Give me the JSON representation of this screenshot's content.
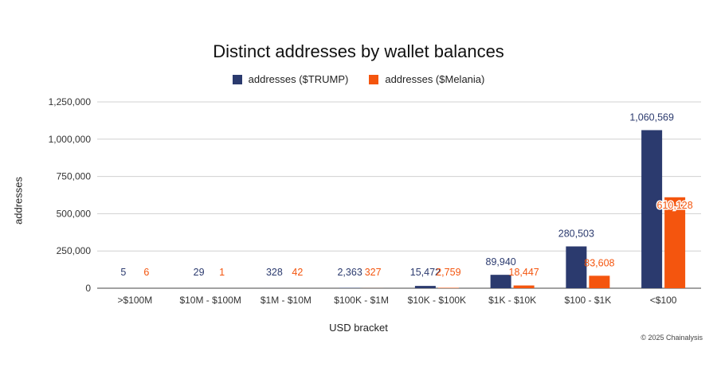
{
  "chart_data": {
    "type": "bar",
    "title": "Distinct addresses by wallet balances",
    "xlabel": "USD bracket",
    "ylabel": "addresses",
    "ylim": [
      0,
      1250000
    ],
    "yticks": [
      0,
      250000,
      500000,
      750000,
      1000000,
      1250000
    ],
    "ytick_labels": [
      "0",
      "250,000",
      "500,000",
      "750,000",
      "1,000,000",
      "1,250,000"
    ],
    "grid": true,
    "legend_position": "top-center",
    "categories": [
      ">$100M",
      "$10M - $100M",
      "$1M - $10M",
      "$100K - $1M",
      "$10K - $100K",
      "$1K - $10K",
      "$100 - $1K",
      "<$100"
    ],
    "series": [
      {
        "name": "addresses ($TRUMP)",
        "color": "#2b3a6e",
        "values": [
          5,
          29,
          328,
          2363,
          15472,
          89940,
          280503,
          1060569
        ],
        "labels": [
          "5",
          "29",
          "328",
          "2,363",
          "15,472",
          "89,940",
          "280,503",
          "1,060,569"
        ]
      },
      {
        "name": "addresses ($Melania)",
        "color": "#f4550e",
        "values": [
          6,
          1,
          42,
          327,
          2759,
          18447,
          83608,
          610128
        ],
        "labels": [
          "6",
          "1",
          "42",
          "327",
          "2,759",
          "18,447",
          "83,608",
          "610,128"
        ]
      }
    ]
  },
  "footer": {
    "credit": "© 2025 Chainalysis"
  }
}
